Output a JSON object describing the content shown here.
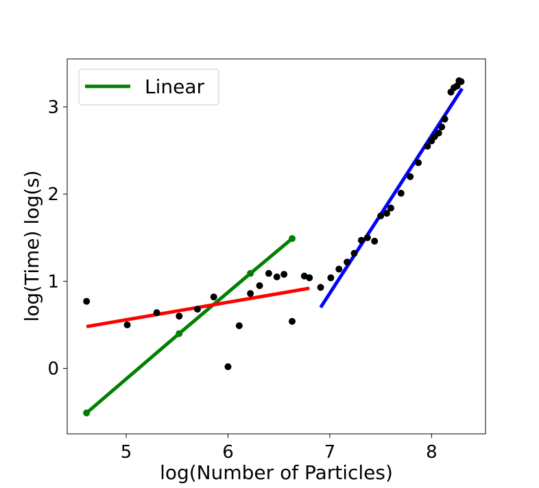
{
  "chart_data": {
    "type": "scatter",
    "title": "",
    "xlabel": "log(Number of Particles)",
    "ylabel": "log(Time) log(s)",
    "xlim": [
      4.42,
      8.53
    ],
    "ylim": [
      -0.75,
      3.55
    ],
    "xticks": [
      5,
      6,
      7,
      8
    ],
    "yticks": [
      0,
      1,
      2,
      3
    ],
    "grid": false,
    "legend": {
      "position": "top-left",
      "entries": [
        {
          "label": "Linear",
          "color": "#008000"
        }
      ]
    },
    "points": {
      "color": "#000000",
      "x": [
        4.61,
        5.01,
        5.3,
        5.52,
        5.7,
        5.86,
        6.0,
        6.11,
        6.22,
        6.31,
        6.4,
        6.48,
        6.55,
        6.63,
        6.75,
        6.8,
        6.91,
        7.01,
        7.09,
        7.17,
        7.24,
        7.31,
        7.37,
        7.44,
        7.5,
        7.56,
        7.6,
        7.7,
        7.79,
        7.87,
        7.96,
        8.0,
        8.03,
        8.07,
        8.1,
        8.13,
        8.19,
        8.22,
        8.25,
        8.27,
        8.29
      ],
      "y": [
        0.77,
        0.5,
        0.64,
        0.6,
        0.68,
        0.82,
        0.02,
        0.49,
        0.86,
        0.95,
        1.09,
        1.05,
        1.08,
        0.54,
        1.06,
        1.04,
        0.93,
        1.04,
        1.14,
        1.22,
        1.32,
        1.47,
        1.5,
        1.46,
        1.75,
        1.78,
        1.84,
        2.01,
        2.2,
        2.36,
        2.55,
        2.61,
        2.66,
        2.7,
        2.77,
        2.86,
        3.17,
        3.22,
        3.24,
        3.3,
        3.29
      ]
    },
    "lines": [
      {
        "name": "Linear",
        "color": "#008000",
        "markers": true,
        "x": [
          4.61,
          5.52,
          6.22,
          6.63
        ],
        "y": [
          -0.51,
          0.4,
          1.09,
          1.49
        ]
      },
      {
        "color": "#ff0000",
        "markers": false,
        "x": [
          4.61,
          6.8
        ],
        "y": [
          0.48,
          0.92
        ]
      },
      {
        "color": "#0000ff",
        "markers": false,
        "x": [
          6.91,
          8.3
        ],
        "y": [
          0.7,
          3.21
        ]
      }
    ]
  }
}
